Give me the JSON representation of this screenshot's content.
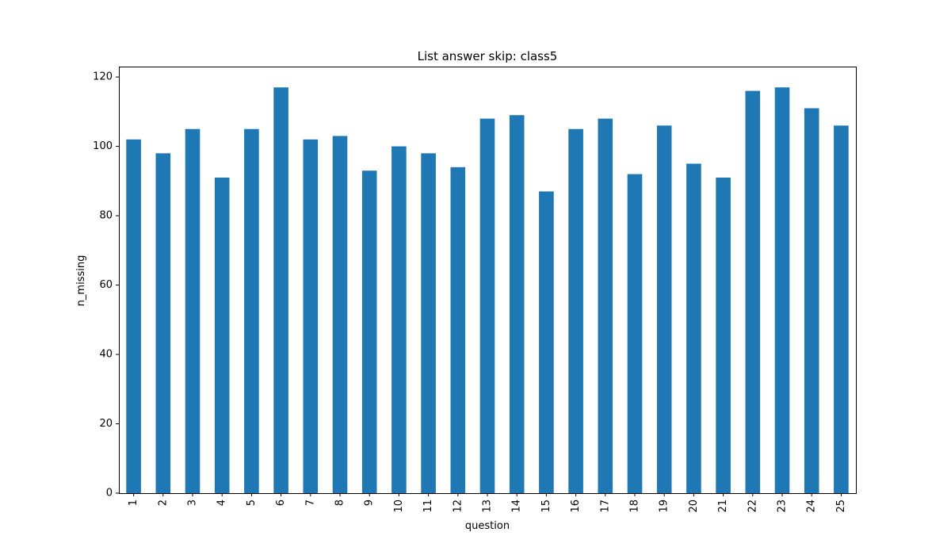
{
  "chart_data": {
    "type": "bar",
    "title": "List answer skip: class5",
    "xlabel": "question",
    "ylabel": "n_missing",
    "categories": [
      "1",
      "2",
      "3",
      "4",
      "5",
      "6",
      "7",
      "8",
      "9",
      "10",
      "11",
      "12",
      "13",
      "14",
      "15",
      "16",
      "17",
      "18",
      "19",
      "20",
      "21",
      "22",
      "23",
      "24",
      "25"
    ],
    "values": [
      102,
      98,
      105,
      91,
      105,
      117,
      102,
      103,
      93,
      100,
      98,
      94,
      108,
      109,
      87,
      105,
      108,
      92,
      106,
      95,
      91,
      116,
      117,
      111,
      106
    ],
    "ylim": [
      0,
      123
    ],
    "yticks": [
      0,
      20,
      40,
      60,
      80,
      100,
      120
    ],
    "grid": false,
    "legend": "none",
    "bar_color": "#1f77b4"
  }
}
